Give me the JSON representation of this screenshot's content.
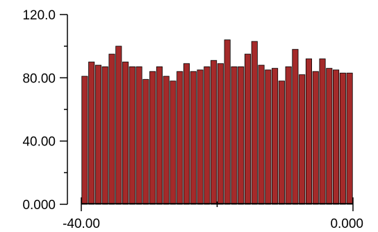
{
  "chart_data": {
    "type": "bar",
    "title": "",
    "xlabel": "",
    "ylabel": "",
    "xlim": [
      -40.0,
      0.0
    ],
    "ylim": [
      0.0,
      120.0
    ],
    "x_tick_labels": [
      {
        "value": -40.0,
        "label": "-40.00"
      },
      {
        "value": 0.0,
        "label": "0.000"
      }
    ],
    "x_minor_ticks": [
      -20.0
    ],
    "y_tick_labels": [
      {
        "value": 0.0,
        "label": "0.000"
      },
      {
        "value": 40.0,
        "label": "40.00"
      },
      {
        "value": 80.0,
        "label": "80.00"
      },
      {
        "value": 120.0,
        "label": "120.0"
      }
    ],
    "y_minor_ticks": [
      20.0,
      60.0,
      100.0
    ],
    "bin_width": 1.0,
    "x": [
      -39.5,
      -38.5,
      -37.5,
      -36.5,
      -35.5,
      -34.5,
      -33.5,
      -32.5,
      -31.5,
      -30.5,
      -29.5,
      -28.5,
      -27.5,
      -26.5,
      -25.5,
      -24.5,
      -23.5,
      -22.5,
      -21.5,
      -20.5,
      -19.5,
      -18.5,
      -17.5,
      -16.5,
      -15.5,
      -14.5,
      -13.5,
      -12.5,
      -11.5,
      -10.5,
      -9.5,
      -8.5,
      -7.5,
      -6.5,
      -5.5,
      -4.5,
      -3.5,
      -2.5,
      -1.5,
      -0.5
    ],
    "values": [
      81,
      90,
      88,
      87,
      95,
      100,
      90,
      87,
      87,
      79,
      84,
      87,
      81,
      78,
      84,
      89,
      84,
      85,
      87,
      91,
      89,
      104,
      87,
      87,
      95,
      103,
      88,
      85,
      86,
      78,
      87,
      98,
      82,
      92,
      84,
      92,
      86,
      85,
      83,
      83
    ],
    "grid": false,
    "legend": "none",
    "colors": {
      "bar": "#A52A2A",
      "outline": "#000000",
      "axis": "#000000",
      "background": "#ffffff"
    }
  }
}
